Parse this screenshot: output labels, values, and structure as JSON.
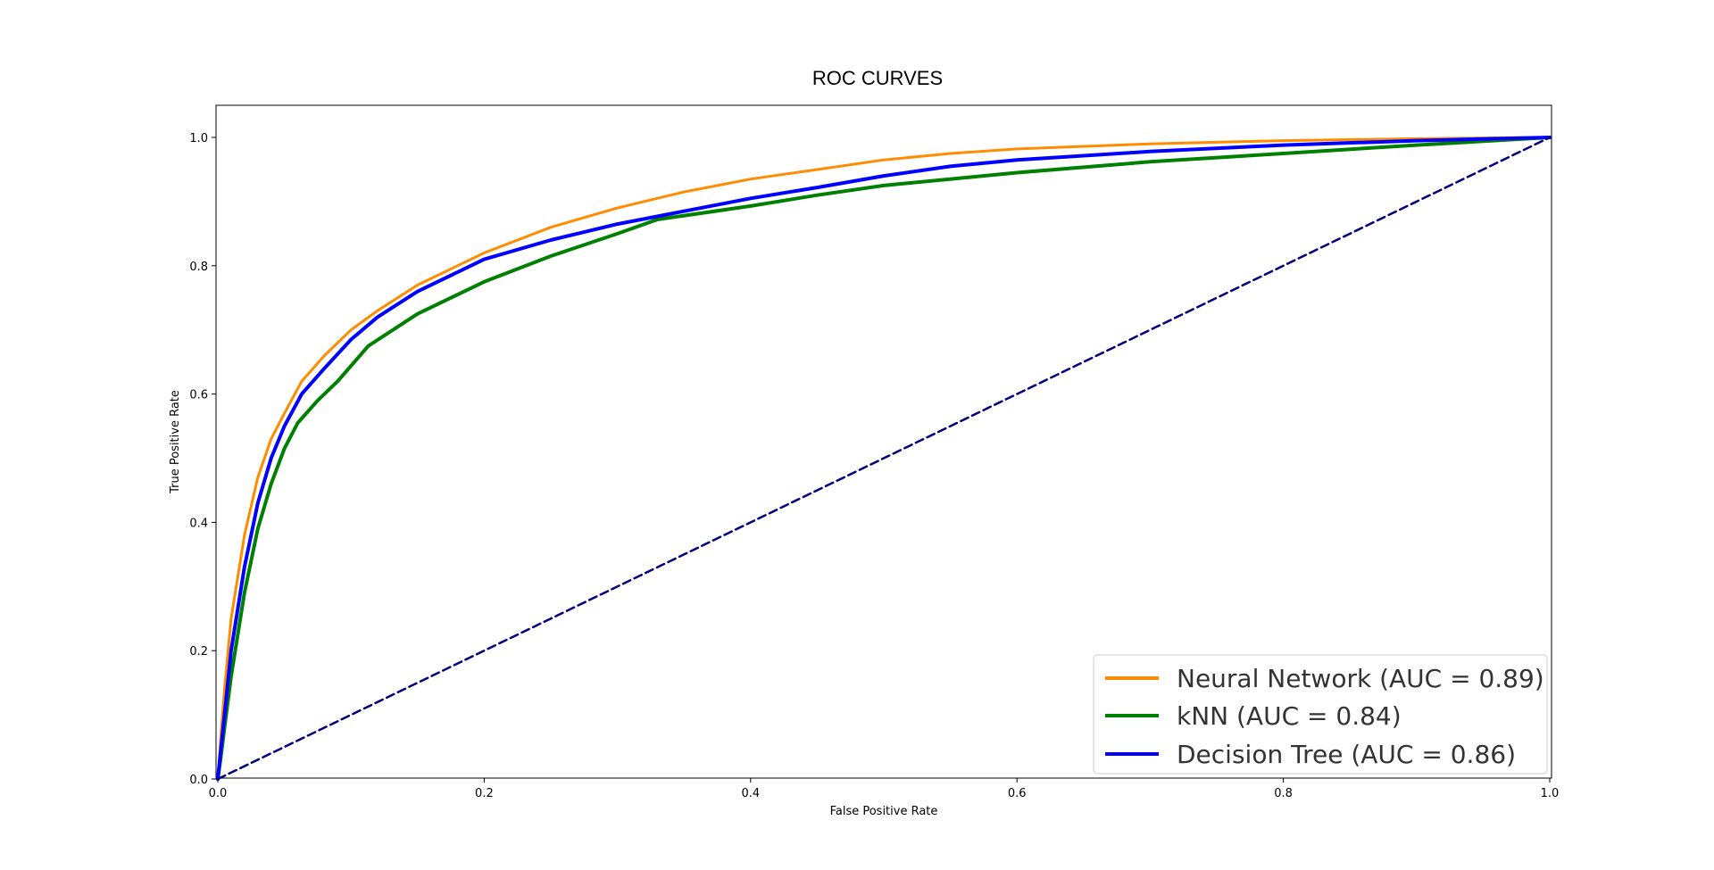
{
  "chart_data": {
    "type": "line",
    "title": "ROC CURVES",
    "xlabel": "False Positive Rate",
    "ylabel": "True Positive Rate",
    "xlim": [
      0.0,
      1.0
    ],
    "ylim": [
      0.0,
      1.05
    ],
    "xticks": [
      "0.0",
      "0.2",
      "0.4",
      "0.6",
      "0.8",
      "1.0"
    ],
    "yticks": [
      "0.0",
      "0.2",
      "0.4",
      "0.6",
      "0.8",
      "1.0"
    ],
    "xtick_values": [
      0.0,
      0.2,
      0.4,
      0.6,
      0.8,
      1.0
    ],
    "ytick_values": [
      0.0,
      0.2,
      0.4,
      0.6,
      0.8,
      1.0
    ],
    "grid": false,
    "legend_position": "lower-right",
    "series": [
      {
        "name": "Neural Network (AUC = 0.89)",
        "color": "#ff8c00",
        "style": "solid",
        "x": [
          0.0,
          0.002,
          0.005,
          0.01,
          0.02,
          0.03,
          0.04,
          0.05,
          0.063,
          0.08,
          0.1,
          0.12,
          0.15,
          0.2,
          0.25,
          0.3,
          0.35,
          0.4,
          0.45,
          0.5,
          0.55,
          0.6,
          0.7,
          0.8,
          0.9,
          1.0
        ],
        "y": [
          0.0,
          0.06,
          0.14,
          0.25,
          0.38,
          0.47,
          0.53,
          0.57,
          0.62,
          0.66,
          0.7,
          0.73,
          0.77,
          0.82,
          0.86,
          0.89,
          0.915,
          0.935,
          0.95,
          0.965,
          0.975,
          0.982,
          0.99,
          0.995,
          0.998,
          1.0
        ]
      },
      {
        "name": "kNN (AUC = 0.84)",
        "color": "#008000",
        "style": "solid",
        "x": [
          0.0,
          0.002,
          0.005,
          0.01,
          0.02,
          0.03,
          0.04,
          0.05,
          0.06,
          0.075,
          0.09,
          0.113,
          0.15,
          0.2,
          0.25,
          0.3,
          0.33,
          0.4,
          0.45,
          0.5,
          0.6,
          0.7,
          0.8,
          0.9,
          1.0
        ],
        "y": [
          0.0,
          0.03,
          0.08,
          0.16,
          0.29,
          0.39,
          0.46,
          0.515,
          0.555,
          0.59,
          0.62,
          0.675,
          0.725,
          0.775,
          0.815,
          0.85,
          0.872,
          0.893,
          0.91,
          0.925,
          0.945,
          0.962,
          0.975,
          0.988,
          1.0
        ]
      },
      {
        "name": "Decision Tree (AUC = 0.86)",
        "color": "#0000ff",
        "style": "solid",
        "x": [
          0.0,
          0.002,
          0.005,
          0.01,
          0.02,
          0.03,
          0.04,
          0.05,
          0.063,
          0.08,
          0.1,
          0.12,
          0.15,
          0.2,
          0.25,
          0.3,
          0.35,
          0.4,
          0.45,
          0.5,
          0.55,
          0.6,
          0.7,
          0.8,
          0.9,
          1.0
        ],
        "y": [
          0.0,
          0.04,
          0.1,
          0.2,
          0.33,
          0.43,
          0.5,
          0.55,
          0.6,
          0.64,
          0.685,
          0.72,
          0.76,
          0.81,
          0.84,
          0.865,
          0.885,
          0.905,
          0.922,
          0.94,
          0.955,
          0.965,
          0.978,
          0.988,
          0.995,
          1.0
        ]
      },
      {
        "name": "",
        "color": "#000080",
        "style": "dashed",
        "x": [
          0.0,
          1.0
        ],
        "y": [
          0.0,
          1.0
        ]
      }
    ],
    "legend": [
      {
        "label": "Neural Network (AUC = 0.89)",
        "color": "#ff8c00"
      },
      {
        "label": "kNN (AUC = 0.84)",
        "color": "#008000"
      },
      {
        "label": "Decision Tree (AUC = 0.86)",
        "color": "#0000ff"
      }
    ]
  }
}
